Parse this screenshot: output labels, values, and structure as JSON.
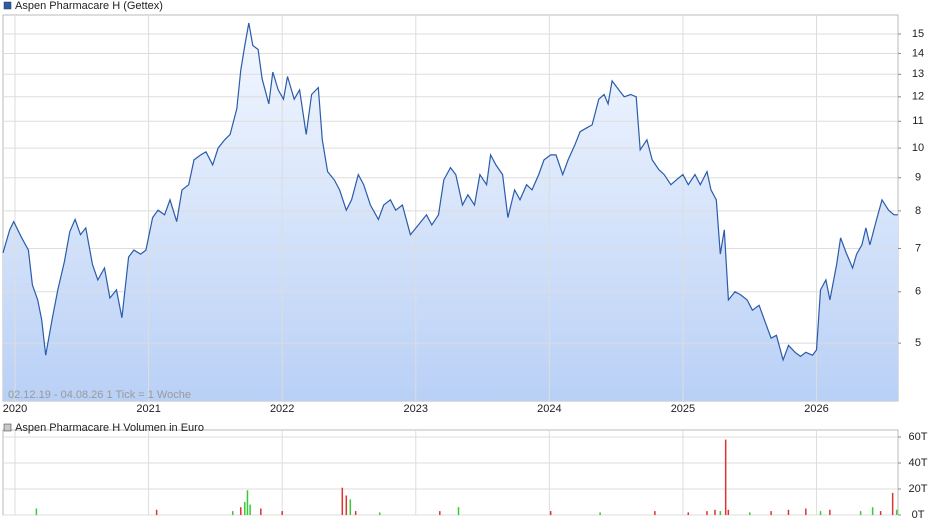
{
  "chart_data": [
    {
      "type": "line",
      "annotation": "02.12.19 - 04.08.26   1 Tick = 1 Woche",
      "log_scale": true,
      "grid": true,
      "xlim": [
        2019.91,
        2026.61
      ],
      "ylim": [
        4.07,
        16.05
      ],
      "xticks": [
        2020,
        2021,
        2022,
        2023,
        2024,
        2025,
        2026
      ],
      "yticks": [
        5,
        6,
        7,
        8,
        9,
        10,
        11,
        12,
        13,
        14,
        15
      ],
      "x": [
        2019.91,
        2019.96,
        2019.99,
        2020.05,
        2020.1,
        2020.13,
        2020.17,
        2020.2,
        2020.23,
        2020.28,
        2020.32,
        2020.37,
        2020.41,
        2020.45,
        2020.49,
        2020.53,
        2020.58,
        2020.62,
        2020.67,
        2020.71,
        2020.76,
        2020.8,
        2020.85,
        2020.89,
        2020.94,
        2020.98,
        2021.03,
        2021.07,
        2021.12,
        2021.16,
        2021.21,
        2021.25,
        2021.3,
        2021.34,
        2021.39,
        2021.43,
        2021.48,
        2021.52,
        2021.57,
        2021.61,
        2021.66,
        2021.69,
        2021.72,
        2021.75,
        2021.78,
        2021.82,
        2021.85,
        2021.9,
        2021.93,
        2021.97,
        2022.01,
        2022.04,
        2022.09,
        2022.13,
        2022.18,
        2022.22,
        2022.27,
        2022.3,
        2022.34,
        2022.39,
        2022.43,
        2022.48,
        2022.52,
        2022.57,
        2022.61,
        2022.66,
        2022.72,
        2022.76,
        2022.81,
        2022.85,
        2022.9,
        2022.96,
        2023.02,
        2023.08,
        2023.12,
        2023.17,
        2023.21,
        2023.26,
        2023.3,
        2023.35,
        2023.39,
        2023.44,
        2023.48,
        2023.53,
        2023.56,
        2023.6,
        2023.65,
        2023.69,
        2023.74,
        2023.78,
        2023.83,
        2023.87,
        2023.92,
        2023.96,
        2024.01,
        2024.05,
        2024.1,
        2024.14,
        2024.19,
        2024.23,
        2024.28,
        2024.32,
        2024.37,
        2024.41,
        2024.44,
        2024.47,
        2024.52,
        2024.56,
        2024.61,
        2024.65,
        2024.68,
        2024.73,
        2024.77,
        2024.82,
        2024.86,
        2024.91,
        2024.95,
        2025.0,
        2025.04,
        2025.09,
        2025.13,
        2025.18,
        2025.21,
        2025.25,
        2025.28,
        2025.31,
        2025.34,
        2025.39,
        2025.43,
        2025.48,
        2025.52,
        2025.57,
        2025.61,
        2025.66,
        2025.7,
        2025.75,
        2025.79,
        2025.84,
        2025.88,
        2025.92,
        2025.97,
        2026.0,
        2026.03,
        2026.07,
        2026.1,
        2026.15,
        2026.18,
        2026.22,
        2026.27,
        2026.3,
        2026.34,
        2026.37,
        2026.4,
        2026.45,
        2026.49,
        2026.54,
        2026.58,
        2026.61
      ],
      "series": [
        {
          "name": "Aspen Pharmacare H (Gettex)",
          "color": "#2a5caa",
          "values": [
            6.89,
            7.48,
            7.7,
            7.27,
            6.96,
            6.15,
            5.83,
            5.43,
            4.79,
            5.47,
            6.04,
            6.68,
            7.43,
            7.76,
            7.35,
            7.53,
            6.61,
            6.26,
            6.53,
            5.87,
            6.04,
            5.47,
            6.79,
            6.96,
            6.86,
            6.96,
            7.81,
            8.02,
            7.89,
            8.32,
            7.7,
            8.62,
            8.78,
            9.59,
            9.76,
            9.87,
            9.42,
            10.0,
            10.3,
            10.5,
            11.5,
            13.2,
            14.4,
            15.6,
            14.4,
            14.2,
            12.8,
            11.7,
            13.1,
            12.3,
            11.9,
            12.9,
            11.9,
            12.3,
            10.5,
            12.1,
            12.4,
            10.3,
            9.2,
            8.93,
            8.62,
            8.02,
            8.32,
            9.1,
            8.78,
            8.17,
            7.76,
            8.17,
            8.32,
            8.02,
            8.17,
            7.35,
            7.61,
            7.89,
            7.61,
            7.89,
            8.93,
            9.33,
            9.1,
            8.17,
            8.47,
            8.17,
            9.1,
            8.78,
            9.76,
            9.42,
            9.1,
            7.81,
            8.62,
            8.32,
            8.78,
            8.62,
            9.1,
            9.59,
            9.76,
            9.76,
            9.1,
            9.59,
            10.1,
            10.6,
            10.75,
            10.86,
            11.9,
            12.1,
            11.7,
            12.7,
            12.3,
            12.0,
            12.1,
            12.0,
            9.94,
            10.3,
            9.59,
            9.26,
            9.1,
            8.78,
            8.93,
            9.1,
            8.78,
            9.1,
            8.78,
            9.2,
            8.62,
            8.32,
            6.86,
            7.48,
            5.83,
            6.0,
            5.94,
            5.83,
            5.62,
            5.72,
            5.43,
            5.09,
            5.14,
            4.71,
            4.96,
            4.84,
            4.77,
            4.84,
            4.79,
            4.88,
            6.04,
            6.26,
            5.83,
            6.61,
            7.27,
            6.91,
            6.53,
            6.86,
            7.09,
            7.53,
            7.09,
            7.76,
            8.32,
            8.02,
            7.89,
            7.89
          ]
        }
      ]
    },
    {
      "type": "bar",
      "grid": true,
      "xlim": [
        2019.91,
        2026.61
      ],
      "ylim": [
        0,
        65400
      ],
      "yticks": [
        {
          "value": 0,
          "label": "0T"
        },
        {
          "value": 20000,
          "label": "20T"
        },
        {
          "value": 40000,
          "label": "40T"
        },
        {
          "value": 60000,
          "label": "60T"
        }
      ],
      "x": [
        2020.16,
        2021.06,
        2021.63,
        2021.69,
        2021.72,
        2021.74,
        2021.76,
        2021.84,
        2022.0,
        2022.45,
        2022.48,
        2022.51,
        2022.55,
        2022.73,
        2023.18,
        2023.32,
        2024.01,
        2024.38,
        2024.79,
        2025.04,
        2025.18,
        2025.24,
        2025.28,
        2025.32,
        2025.34,
        2025.5,
        2025.66,
        2025.79,
        2025.92,
        2026.03,
        2026.1,
        2026.33,
        2026.42,
        2026.48,
        2026.57,
        2026.6
      ],
      "colors": [
        "#3c3",
        "#d33",
        "#3c3",
        "#d33",
        "#3c3",
        "#3c3",
        "#3c3",
        "#d33",
        "#d33",
        "#d33",
        "#d33",
        "#3c3",
        "#d33",
        "#3c3",
        "#d33",
        "#3c3",
        "#d33",
        "#3c3",
        "#d33",
        "#d33",
        "#d33",
        "#d33",
        "#3c3",
        "#d33",
        "#d33",
        "#3c3",
        "#d33",
        "#d33",
        "#d33",
        "#3c3",
        "#d33",
        "#3c3",
        "#3c3",
        "#d33",
        "#d33",
        "#3c3"
      ],
      "series": [
        {
          "name": "Aspen Pharmacare H Volumen in Euro",
          "color": "#c8c8c8",
          "values": [
            5000,
            4000,
            3000,
            6000,
            10000,
            19000,
            8000,
            5000,
            3000,
            21000,
            15000,
            12000,
            3000,
            2000,
            3000,
            6000,
            3000,
            2000,
            3000,
            2000,
            3000,
            4000,
            3000,
            58000,
            4000,
            2000,
            3000,
            4000,
            5000,
            3000,
            4000,
            3000,
            6000,
            3000,
            17000,
            4000
          ]
        }
      ]
    }
  ]
}
